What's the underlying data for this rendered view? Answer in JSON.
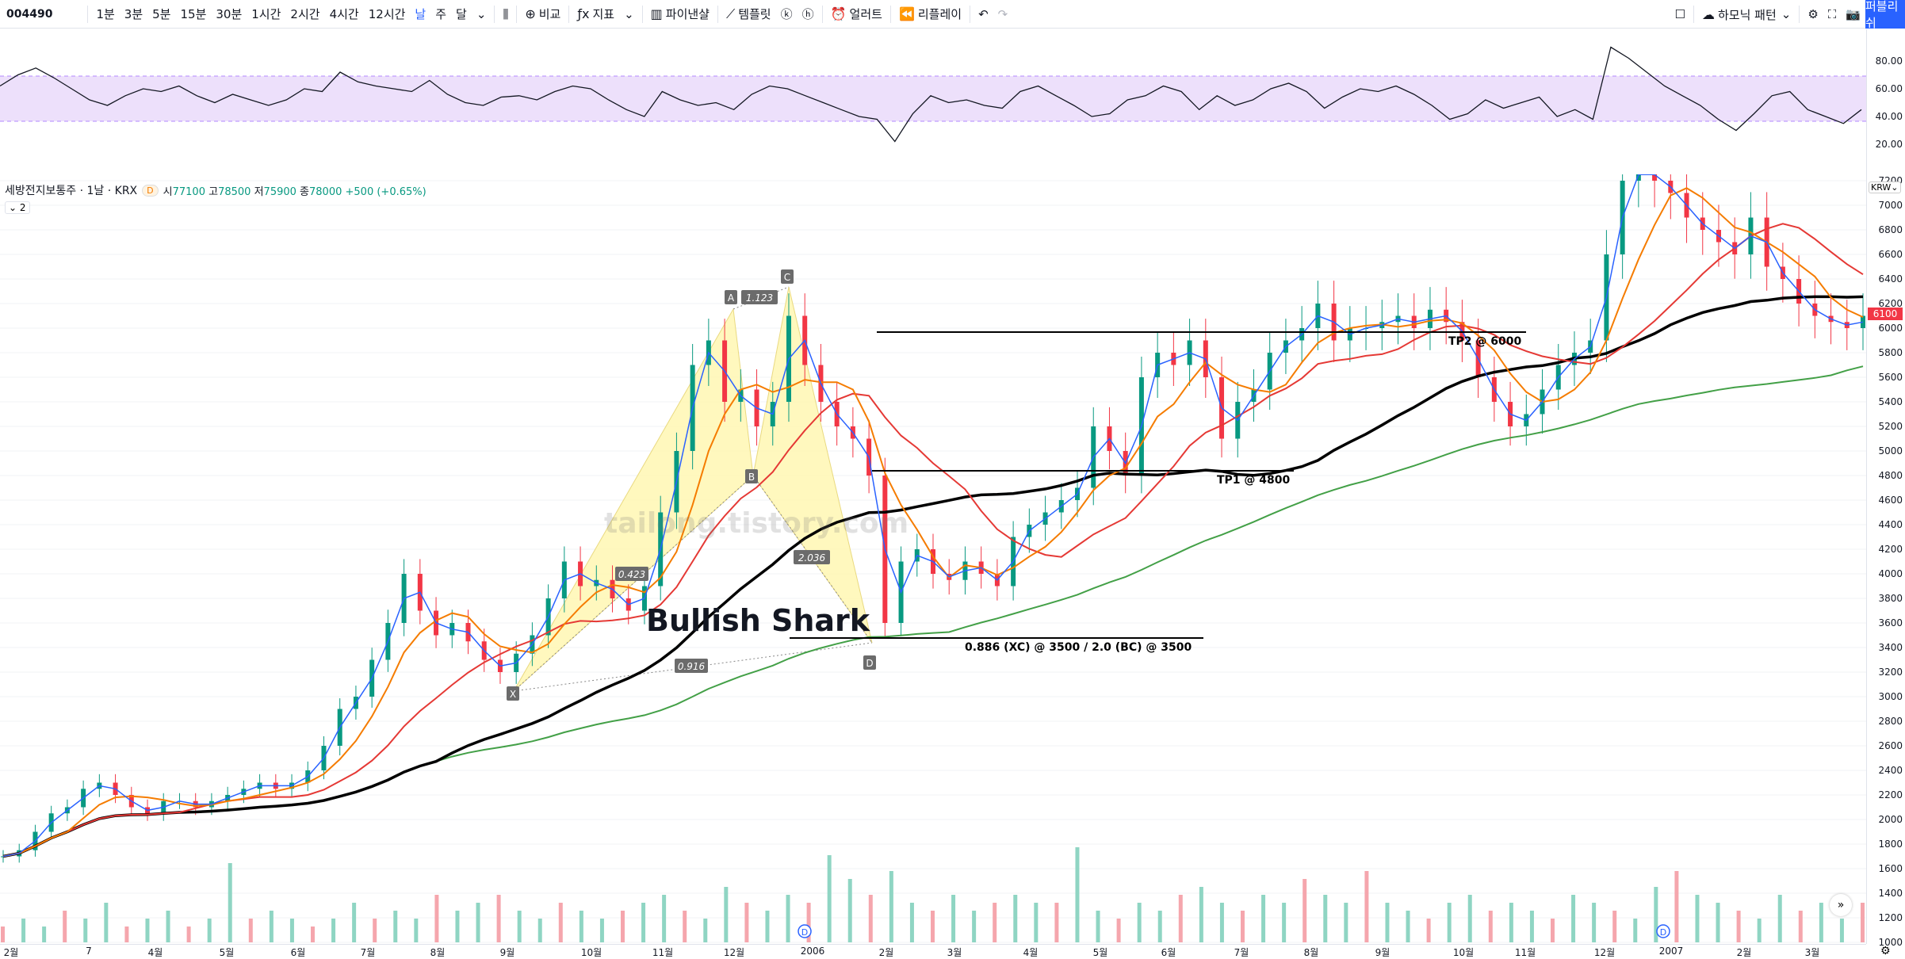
{
  "toolbar": {
    "symbol": "004490",
    "intervals": [
      "1분",
      "3분",
      "5분",
      "15분",
      "30분",
      "1시간",
      "2시간",
      "4시간",
      "12시간",
      "날",
      "주",
      "달"
    ],
    "active_interval": "날",
    "compare_label": "비교",
    "indicators_label": "지표",
    "pine_label": "파이낸샬",
    "templates_label": "템플릿",
    "alert_label": "얼러트",
    "replay_label": "리플레이",
    "harmonic_label": "하모닉 패턴",
    "publish_label": "퍼블리쉬"
  },
  "legend": {
    "title": "세방전지보통주 · 1날 · KRX",
    "open_label": "시",
    "open": "77100",
    "high_label": "고",
    "high": "78500",
    "low_label": "저",
    "low": "75900",
    "close_label": "종",
    "close": "78000",
    "change": "+500 (+0.65%)",
    "badge": "D",
    "collapse": "2"
  },
  "rsi_axis": [
    "80.00",
    "60.00",
    "40.00",
    "20.00"
  ],
  "price_axis": [
    "7200",
    "7000",
    "6800",
    "6600",
    "6400",
    "6200",
    "6000",
    "5800",
    "5600",
    "5400",
    "5200",
    "5000",
    "4800",
    "4600",
    "4400",
    "4200",
    "4000",
    "3800",
    "3600",
    "3400",
    "3200",
    "3000",
    "2800",
    "2600",
    "2400",
    "2200",
    "2000",
    "1800",
    "1600",
    "1400",
    "1200",
    "1000"
  ],
  "currency": "KRW",
  "last_price": "6100",
  "time_axis": [
    "2월",
    "7",
    "4월",
    "5월",
    "6월",
    "7월",
    "8월",
    "9월",
    "10월",
    "11월",
    "12월",
    "2006",
    "2월",
    "3월",
    "4월",
    "5월",
    "6월",
    "7월",
    "8월",
    "9월",
    "10월",
    "11월",
    "12월",
    "2007",
    "2월",
    "3월"
  ],
  "watermark": "tailong.tistory.com",
  "pattern": {
    "title": "Bullish Shark",
    "points": [
      "X",
      "A",
      "B",
      "C",
      "D"
    ],
    "ratios": [
      "0.423",
      "1.123",
      "2.036",
      "0.916"
    ],
    "targets": [
      "TP2 @ 6000",
      "TP1 @ 4800",
      "0.886 (XC) @ 3500 / 2.0 (BC) @ 3500"
    ]
  },
  "colors": {
    "up": "#089981",
    "down": "#f23645",
    "ema_blue": "#2962ff",
    "ma_orange": "#f57c00",
    "ma_red": "#e53935",
    "ma_black": "#000000",
    "ma_green": "#43a047",
    "rsi_band": "#ede0fb",
    "pattern_fill": "#fff7b3",
    "accent": "#2962ff"
  },
  "chart_data": {
    "type": "candlestick",
    "ylim": [
      1000,
      7200
    ],
    "close_series": [
      1700,
      1750,
      1900,
      2050,
      2100,
      2250,
      2300,
      2200,
      2100,
      2050,
      2150,
      2150,
      2100,
      2150,
      2200,
      2250,
      2300,
      2250,
      2300,
      2400,
      2600,
      2900,
      3000,
      3300,
      3600,
      4000,
      3700,
      3500,
      3600,
      3450,
      3300,
      3200,
      3350,
      3500,
      3800,
      4100,
      3900,
      3950,
      3800,
      3700,
      3900,
      4500,
      5000,
      5700,
      5900,
      5400,
      5500,
      5200,
      5400,
      6100,
      5700,
      5400,
      5200,
      5100,
      4800,
      3600,
      4100,
      4200,
      4000,
      3950,
      4100,
      4000,
      3900,
      4300,
      4400,
      4500,
      4600,
      4700,
      5200,
      5000,
      4800,
      5600,
      5800,
      5700,
      5900,
      5600,
      5100,
      5400,
      5500,
      5800,
      5900,
      6000,
      6200,
      5900,
      6000,
      6000,
      6050,
      6100,
      6000,
      6150,
      6050,
      5900,
      5600,
      5400,
      5200,
      5300,
      5500,
      5700,
      5800,
      5900,
      6600,
      7200,
      7300,
      7200,
      7100,
      6900,
      6800,
      6700,
      6600,
      6900,
      6500,
      6400,
      6200,
      6100,
      6050,
      6000,
      6100
    ],
    "rsi_series": [
      62,
      70,
      75,
      68,
      60,
      52,
      48,
      55,
      60,
      58,
      62,
      55,
      50,
      56,
      52,
      48,
      52,
      60,
      58,
      72,
      65,
      62,
      60,
      58,
      66,
      56,
      50,
      48,
      54,
      55,
      52,
      58,
      62,
      60,
      52,
      45,
      40,
      58,
      52,
      48,
      50,
      45,
      56,
      62,
      60,
      55,
      50,
      45,
      40,
      38,
      22,
      42,
      55,
      50,
      52,
      48,
      46,
      58,
      62,
      55,
      48,
      40,
      42,
      52,
      55,
      62,
      58,
      45,
      55,
      48,
      52,
      60,
      64,
      58,
      46,
      54,
      60,
      58,
      62,
      56,
      48,
      38,
      42,
      52,
      46,
      50,
      54,
      40,
      45,
      38,
      90,
      82,
      72,
      62,
      55,
      48,
      38,
      30,
      42,
      55,
      58,
      45,
      40,
      35,
      45
    ],
    "volume_series": [
      2,
      3,
      2,
      4,
      3,
      5,
      2,
      3,
      4,
      2,
      3,
      10,
      3,
      4,
      3,
      2,
      3,
      5,
      3,
      4,
      3,
      6,
      4,
      5,
      6,
      4,
      3,
      5,
      4,
      3,
      4,
      5,
      6,
      4,
      3,
      7,
      5,
      4,
      6,
      5,
      11,
      8,
      6,
      9,
      5,
      4,
      6,
      4,
      5,
      6,
      5,
      5,
      12,
      4,
      3,
      5,
      4,
      6,
      7,
      5,
      4,
      6,
      5,
      8,
      6,
      5,
      9,
      5,
      4,
      3,
      5,
      6,
      4,
      5,
      4,
      3,
      6,
      5,
      4,
      3,
      7,
      9,
      6,
      5,
      4,
      3,
      6,
      4,
      5,
      3,
      5
    ]
  }
}
